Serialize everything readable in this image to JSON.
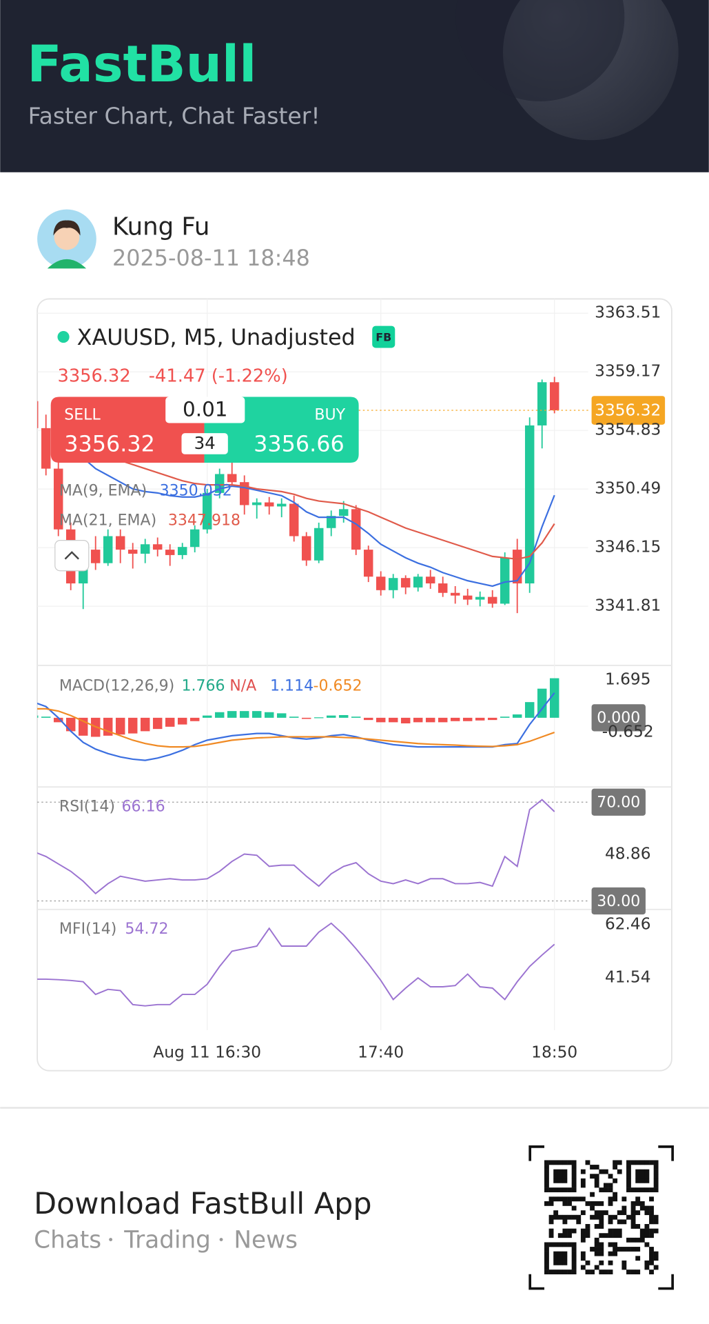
{
  "header": {
    "brand": "FastBull",
    "tagline": "Faster Chart, Chat Faster!"
  },
  "post": {
    "author": "Kung Fu",
    "time": "2025-08-11 18:48"
  },
  "trade": {
    "sell_label": "SELL",
    "buy_label": "BUY",
    "lot": 0.01,
    "spread": 34,
    "sell": 3356.32,
    "buy": 3356.66
  },
  "chart_data": [
    {
      "type": "candlestick",
      "title": "XAUUSD, M5, Unadjusted",
      "badge": "FB",
      "price": 3356.32,
      "change": "-41.47 (-1.22%)",
      "up_color": "#21c99a",
      "down_color": "#f0514f",
      "price_color": "#f5a623",
      "open": [
        3357.0,
        3355.0,
        3352.0,
        3347.5,
        3343.5,
        3346.0,
        3345.0,
        3347.0,
        3346.0,
        3345.7,
        3346.4,
        3346.0,
        3345.6,
        3346.2,
        3347.5,
        3350.2,
        3351.6,
        3351.0,
        3349.3,
        3349.5,
        3349.2,
        3349.4,
        3347.0,
        3345.2,
        3347.6,
        3348.5,
        3349.0,
        3346.0,
        3344.0,
        3343.0,
        3343.9,
        3343.2,
        3344.0,
        3343.5,
        3342.8,
        3342.6,
        3342.3,
        3342.5,
        3342.0,
        3346.0,
        3343.5,
        3355.2,
        3358.4
      ],
      "high": [
        3357.6,
        3356.0,
        3352.8,
        3348.0,
        3346.6,
        3347.0,
        3347.5,
        3347.5,
        3346.5,
        3346.8,
        3346.9,
        3346.4,
        3346.5,
        3347.8,
        3350.5,
        3352.0,
        3352.6,
        3351.5,
        3349.8,
        3349.9,
        3349.8,
        3350.0,
        3347.3,
        3348.0,
        3348.9,
        3349.6,
        3349.3,
        3346.3,
        3344.4,
        3344.2,
        3344.1,
        3344.2,
        3344.5,
        3344.0,
        3343.3,
        3343.1,
        3342.9,
        3343.0,
        3345.8,
        3346.8,
        3355.8,
        3358.6,
        3358.8
      ],
      "low": [
        3354.5,
        3351.5,
        3347.0,
        3343.0,
        3341.6,
        3344.5,
        3344.8,
        3345.0,
        3344.6,
        3345.0,
        3345.5,
        3344.8,
        3345.3,
        3345.8,
        3347.2,
        3349.8,
        3350.8,
        3348.6,
        3348.3,
        3348.6,
        3348.4,
        3346.6,
        3344.8,
        3345.0,
        3347.0,
        3348.0,
        3345.6,
        3343.6,
        3342.6,
        3342.4,
        3342.7,
        3342.9,
        3343.1,
        3342.5,
        3342.0,
        3341.9,
        3341.8,
        3341.7,
        3341.9,
        3341.3,
        3342.8,
        3353.5,
        3356.1
      ],
      "close": [
        3355.0,
        3352.0,
        3347.5,
        3343.5,
        3346.0,
        3345.0,
        3347.0,
        3346.0,
        3345.7,
        3346.4,
        3346.0,
        3345.6,
        3346.2,
        3347.5,
        3350.2,
        3351.6,
        3351.0,
        3349.3,
        3349.5,
        3349.2,
        3349.4,
        3347.0,
        3345.2,
        3347.6,
        3348.5,
        3349.0,
        3346.0,
        3344.0,
        3343.0,
        3343.9,
        3343.2,
        3344.0,
        3343.5,
        3342.8,
        3342.6,
        3342.3,
        3342.5,
        3342.0,
        3345.4,
        3343.5,
        3355.2,
        3358.4,
        3356.32
      ],
      "series": [
        {
          "name": "MA(9, EMA)",
          "last": 3350.032,
          "color": "#3b6fe0",
          "values": [
            null,
            null,
            null,
            null,
            3352.8,
            3352.0,
            3351.5,
            3351.0,
            3350.5,
            3350.3,
            3350.2,
            3350.0,
            3349.9,
            3349.9,
            3350.1,
            3350.5,
            3350.7,
            3350.6,
            3350.4,
            3350.2,
            3350.0,
            3349.5,
            3348.8,
            3348.4,
            3348.4,
            3348.4,
            3347.9,
            3347.2,
            3346.4,
            3345.9,
            3345.4,
            3345.0,
            3344.7,
            3344.3,
            3344.0,
            3343.7,
            3343.5,
            3343.3,
            3343.6,
            3343.7,
            3345.0,
            3347.7,
            3350.032
          ]
        },
        {
          "name": "MA(21, EMA)",
          "last": 3347.918,
          "color": "#e05a4a",
          "values": [
            null,
            null,
            null,
            null,
            3353.5,
            3353.2,
            3352.9,
            3352.6,
            3352.3,
            3352.0,
            3351.7,
            3351.4,
            3351.1,
            3350.9,
            3350.8,
            3350.8,
            3350.8,
            3350.7,
            3350.5,
            3350.4,
            3350.3,
            3350.1,
            3349.8,
            3349.6,
            3349.5,
            3349.4,
            3349.1,
            3348.8,
            3348.4,
            3348.0,
            3347.6,
            3347.3,
            3347.0,
            3346.7,
            3346.4,
            3346.1,
            3345.8,
            3345.5,
            3345.4,
            3345.3,
            3345.5,
            3346.5,
            3347.918
          ]
        }
      ],
      "ylim": [
        3337.43,
        3364.57
      ],
      "yticks": [
        3363.51,
        3359.17,
        3354.83,
        3350.49,
        3346.15,
        3341.81
      ],
      "xticks": [
        {
          "value": 14,
          "label": "Aug 11 16:30"
        },
        {
          "value": 28,
          "label": "17:40"
        },
        {
          "value": 42,
          "label": "18:50"
        }
      ],
      "grid": true
    },
    {
      "type": "macd",
      "title": "MACD(12,26,9)",
      "readouts": [
        {
          "text": 1.766,
          "color": "#22a989"
        },
        {
          "text": "N/A",
          "color": "#e0504f"
        },
        {
          "text": 1.114,
          "color": "#3b6fe0"
        },
        {
          "text": -0.652,
          "color": "#f08a24"
        }
      ],
      "up_color": "#21c99a",
      "down_color": "#f0514f",
      "histogram": [
        0.1,
        0.05,
        -0.2,
        -0.6,
        -0.8,
        -0.85,
        -0.8,
        -0.75,
        -0.7,
        -0.6,
        -0.5,
        -0.4,
        -0.3,
        -0.15,
        0.1,
        0.25,
        0.3,
        0.3,
        0.3,
        0.25,
        0.2,
        0.05,
        -0.05,
        0.02,
        0.1,
        0.12,
        0.05,
        -0.1,
        -0.2,
        -0.2,
        -0.25,
        -0.2,
        -0.2,
        -0.2,
        -0.15,
        -0.15,
        -0.12,
        -0.1,
        0.05,
        0.15,
        0.7,
        1.3,
        1.766
      ],
      "series": [
        {
          "color": "#3b6fe0",
          "values": [
            0.7,
            0.5,
            0.0,
            -0.6,
            -1.1,
            -1.4,
            -1.6,
            -1.75,
            -1.85,
            -1.9,
            -1.8,
            -1.65,
            -1.45,
            -1.2,
            -1.0,
            -0.9,
            -0.8,
            -0.75,
            -0.7,
            -0.7,
            -0.8,
            -0.9,
            -0.95,
            -0.9,
            -0.8,
            -0.75,
            -0.85,
            -1.0,
            -1.1,
            -1.2,
            -1.25,
            -1.3,
            -1.3,
            -1.3,
            -1.3,
            -1.3,
            -1.3,
            -1.3,
            -1.2,
            -1.15,
            -0.3,
            0.4,
            1.114
          ]
        },
        {
          "color": "#f08a24",
          "values": [
            0.4,
            0.4,
            0.3,
            0.1,
            -0.15,
            -0.4,
            -0.6,
            -0.8,
            -1.0,
            -1.15,
            -1.25,
            -1.3,
            -1.3,
            -1.28,
            -1.2,
            -1.1,
            -1.0,
            -0.95,
            -0.9,
            -0.88,
            -0.85,
            -0.85,
            -0.85,
            -0.85,
            -0.85,
            -0.88,
            -0.9,
            -0.95,
            -1.0,
            -1.05,
            -1.1,
            -1.15,
            -1.18,
            -1.2,
            -1.22,
            -1.25,
            -1.27,
            -1.28,
            -1.25,
            -1.2,
            -1.05,
            -0.85,
            -0.652
          ]
        }
      ],
      "ylim": [
        -3.09,
        2.34
      ],
      "yticks": [
        1.695,
        {
          "value": 0,
          "label": "0.000"
        },
        -0.652
      ]
    },
    {
      "type": "line",
      "title": "RSI(14)",
      "readout": 66.16,
      "color": "#9b73d1",
      "values": [
        50,
        48,
        45,
        42,
        38,
        33,
        37,
        40,
        39,
        38,
        38.5,
        39,
        38.5,
        38.5,
        39,
        42,
        46,
        49,
        48.5,
        44,
        44.5,
        44.5,
        40,
        36,
        41,
        44,
        45.5,
        41,
        38,
        37,
        38.5,
        37,
        39,
        39,
        37,
        37,
        37.5,
        36,
        48,
        44,
        67,
        71,
        66.16
      ],
      "ylim": [
        26.58,
        76.15
      ],
      "yticks": [
        {
          "value": 70,
          "label": "70.00"
        },
        48.86,
        {
          "value": 30,
          "label": "30.00"
        }
      ]
    },
    {
      "type": "line",
      "title": "MFI(14)",
      "readout": 54.72,
      "color": "#9b73d1",
      "values": [
        41,
        41,
        40.8,
        40.5,
        40,
        35,
        37,
        36.5,
        31,
        30.5,
        31,
        31,
        35,
        35,
        39,
        46,
        52,
        53,
        54,
        61,
        54,
        54,
        54,
        59.5,
        63,
        58.5,
        53,
        47,
        40.5,
        33,
        37.5,
        41.5,
        38,
        38,
        38.5,
        43,
        38,
        37.5,
        33,
        40,
        46,
        50.5,
        54.72
      ],
      "ylim": [
        20.95,
        68.44
      ],
      "yticks": [
        62.46,
        41.54
      ]
    }
  ],
  "footer": {
    "title": "Download FastBull App",
    "links": [
      "Chats",
      "Trading",
      "News"
    ]
  }
}
